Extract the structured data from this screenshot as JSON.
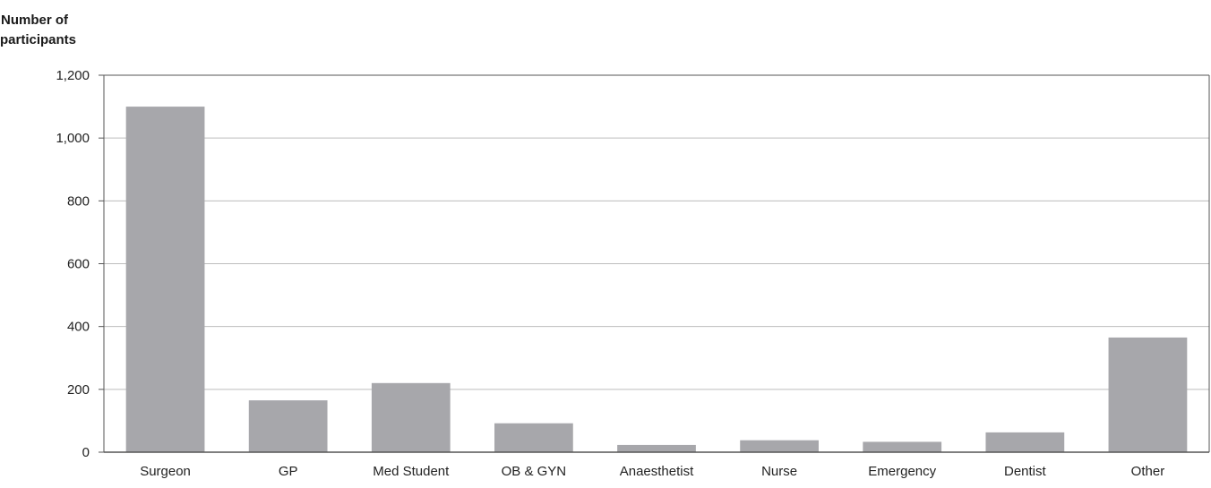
{
  "chart_data": {
    "type": "bar",
    "ylabel_line1": "Number of",
    "ylabel_line2": "participants",
    "categories": [
      "Surgeon",
      "GP",
      "Med Student",
      "OB & GYN",
      "Anaesthetist",
      "Nurse",
      "Emergency",
      "Dentist",
      "Other"
    ],
    "values": [
      1100,
      165,
      220,
      92,
      23,
      38,
      33,
      63,
      365
    ],
    "yticks": [
      0,
      200,
      400,
      600,
      800,
      1000,
      1200
    ],
    "ytick_labels": [
      "0",
      "200",
      "400",
      "600",
      "800",
      "1,000",
      "1,200"
    ],
    "ylim": [
      0,
      1200
    ],
    "grid": true,
    "colors": {
      "bar": "#a7a7ab",
      "grid": "#bdbdbd",
      "axis": "#555555",
      "text": "#222222"
    }
  }
}
